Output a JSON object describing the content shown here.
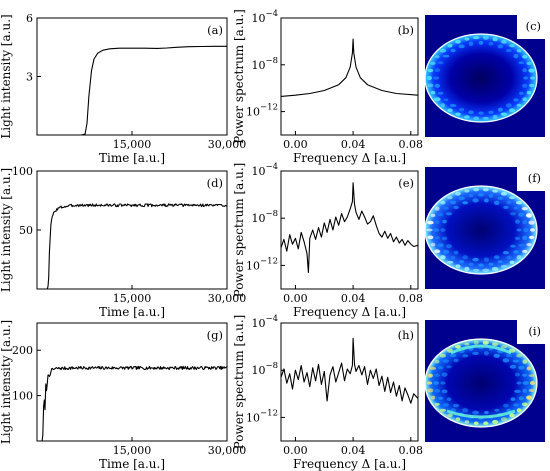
{
  "chart_data": [
    {
      "id": "a",
      "type": "line",
      "panel_label": "(a)",
      "xlabel": "Time [a.u.]",
      "ylabel": "Light intensity [a.u.]",
      "xlim": [
        0,
        30000
      ],
      "ylim": [
        0,
        6
      ],
      "xticks": [
        15000,
        30000
      ],
      "xtick_labels": [
        "15,000",
        "30,000"
      ],
      "yticks": [
        3,
        6
      ],
      "ytick_labels": [
        "3",
        "6"
      ],
      "series": [
        {
          "x": [
            0,
            7000,
            7600,
            7900,
            8200,
            8600,
            9000,
            9600,
            10400,
            11500,
            13000,
            15000,
            17000,
            19000,
            20500,
            22000,
            24000,
            26000,
            28000,
            30000
          ],
          "y": [
            0.0,
            0.0,
            0.05,
            0.6,
            2.0,
            3.3,
            3.9,
            4.2,
            4.35,
            4.42,
            4.45,
            4.45,
            4.45,
            4.44,
            4.46,
            4.5,
            4.53,
            4.54,
            4.55,
            4.55
          ]
        }
      ]
    },
    {
      "id": "b",
      "type": "line",
      "panel_label": "(b)",
      "xlabel": "Frequency Δ [a.u.]",
      "ylabel": "Power spectrum [a.u.]",
      "xlim": [
        -0.01,
        0.085
      ],
      "yscale": "log",
      "ylim_exp": [
        -14,
        -4
      ],
      "xticks": [
        0,
        0.04,
        0.08
      ],
      "xtick_labels": [
        "0.00",
        "0.04",
        "0.08"
      ],
      "ytick_exps": [
        -4,
        -8,
        -12
      ],
      "ytick_base": "10",
      "ytick_exp_labels": [
        "−4",
        "−8",
        "−12"
      ],
      "series": [
        {
          "x": [
            -0.01,
            0.0,
            0.01,
            0.02,
            0.03,
            0.035,
            0.038,
            0.0395,
            0.04,
            0.0405,
            0.042,
            0.045,
            0.05,
            0.06,
            0.07,
            0.085
          ],
          "log10y": [
            -10.7,
            -10.6,
            -10.45,
            -10.2,
            -9.7,
            -9.1,
            -8.2,
            -7.0,
            -5.8,
            -7.0,
            -8.2,
            -9.1,
            -9.7,
            -10.2,
            -10.45,
            -10.6
          ]
        }
      ]
    },
    {
      "id": "d",
      "type": "line",
      "panel_label": "(d)",
      "xlabel": "Time [a.u.]",
      "ylabel": "Light intensity [a.u.]",
      "xlim": [
        0,
        30000
      ],
      "ylim": [
        0,
        100
      ],
      "xticks": [
        15000,
        30000
      ],
      "xtick_labels": [
        "15,000",
        "30,000"
      ],
      "yticks": [
        50,
        100
      ],
      "ytick_labels": [
        "50",
        "100"
      ],
      "noise": 1.2,
      "seed": 3,
      "series": [
        {
          "x": [
            0,
            1700,
            1850,
            2000,
            2200,
            2500,
            3000,
            3600,
            4500,
            6000,
            8000,
            30000
          ],
          "y": [
            0,
            0,
            10,
            38,
            55,
            63,
            67,
            69,
            70,
            71,
            71,
            71
          ]
        }
      ]
    },
    {
      "id": "e",
      "type": "line",
      "panel_label": "(e)",
      "xlabel": "Frequency Δ [a.u.]",
      "ylabel": "Power spectrum [a.u.]",
      "xlim": [
        -0.01,
        0.085
      ],
      "yscale": "log",
      "ylim_exp": [
        -14,
        -4
      ],
      "xticks": [
        0,
        0.04,
        0.08
      ],
      "xtick_labels": [
        "0.00",
        "0.04",
        "0.08"
      ],
      "ytick_exps": [
        -4,
        -8,
        -12
      ],
      "ytick_base": "10",
      "ytick_exp_labels": [
        "−4",
        "−8",
        "−12"
      ],
      "series": [
        {
          "x": [
            -0.01,
            -0.008,
            -0.006,
            -0.004,
            -0.002,
            0.0,
            0.002,
            0.004,
            0.006,
            0.008,
            0.009,
            0.01,
            0.012,
            0.014,
            0.016,
            0.018,
            0.02,
            0.022,
            0.024,
            0.026,
            0.028,
            0.03,
            0.032,
            0.034,
            0.036,
            0.038,
            0.0395,
            0.04,
            0.041,
            0.042,
            0.044,
            0.046,
            0.048,
            0.05,
            0.052,
            0.054,
            0.056,
            0.058,
            0.06,
            0.062,
            0.064,
            0.066,
            0.068,
            0.07,
            0.072,
            0.074,
            0.076,
            0.078,
            0.08,
            0.082,
            0.085
          ],
          "log10y": [
            -10.5,
            -9.8,
            -10.8,
            -9.4,
            -10.2,
            -9.7,
            -10.6,
            -9.2,
            -10.0,
            -11.0,
            -12.6,
            -9.7,
            -9.0,
            -9.8,
            -8.8,
            -9.6,
            -8.4,
            -9.2,
            -8.1,
            -9.0,
            -7.9,
            -8.6,
            -7.6,
            -8.3,
            -7.9,
            -7.2,
            -6.6,
            -5.0,
            -6.8,
            -7.5,
            -8.1,
            -7.4,
            -7.9,
            -8.5,
            -8.3,
            -7.8,
            -8.6,
            -9.3,
            -9.6,
            -9.1,
            -9.7,
            -9.3,
            -10.0,
            -9.6,
            -10.1,
            -9.8,
            -10.3,
            -9.9,
            -10.2,
            -10.4,
            -10.3
          ]
        }
      ]
    },
    {
      "id": "g",
      "type": "line",
      "panel_label": "(g)",
      "xlabel": "Time [a.u.]",
      "ylabel": "Light intensity [a.u.]",
      "xlim": [
        0,
        30000
      ],
      "ylim": [
        0,
        260
      ],
      "xticks": [
        15000,
        30000
      ],
      "xtick_labels": [
        "15,000",
        "30,000"
      ],
      "yticks": [
        100,
        200
      ],
      "ytick_labels": [
        "100",
        "200"
      ],
      "noise": 3.5,
      "seed": 7,
      "series": [
        {
          "x": [
            0,
            900,
            1100,
            1250,
            1400,
            1550,
            1700,
            1900,
            2200,
            2600,
            3200,
            4000,
            6000,
            30000
          ],
          "y": [
            0,
            0,
            110,
            60,
            130,
            100,
            150,
            140,
            155,
            158,
            160,
            160,
            161,
            161
          ]
        }
      ]
    },
    {
      "id": "h",
      "type": "line",
      "panel_label": "(h)",
      "xlabel": "Frequency Δ [a.u.]",
      "ylabel": "Power spectrum [a.u.]",
      "xlim": [
        -0.01,
        0.085
      ],
      "yscale": "log",
      "ylim_exp": [
        -14,
        -4
      ],
      "xticks": [
        0,
        0.04,
        0.08
      ],
      "xtick_labels": [
        "0.00",
        "0.04",
        "0.08"
      ],
      "ytick_exps": [
        -4,
        -8,
        -12
      ],
      "ytick_base": "10",
      "ytick_exp_labels": [
        "−4",
        "−8",
        "−12"
      ],
      "series": [
        {
          "x": [
            -0.01,
            -0.008,
            -0.006,
            -0.004,
            -0.002,
            0.0,
            0.002,
            0.004,
            0.006,
            0.008,
            0.01,
            0.012,
            0.014,
            0.016,
            0.018,
            0.02,
            0.022,
            0.024,
            0.026,
            0.028,
            0.03,
            0.032,
            0.034,
            0.036,
            0.038,
            0.0395,
            0.04,
            0.041,
            0.042,
            0.044,
            0.046,
            0.048,
            0.05,
            0.052,
            0.054,
            0.056,
            0.058,
            0.06,
            0.062,
            0.064,
            0.066,
            0.068,
            0.07,
            0.072,
            0.074,
            0.076,
            0.078,
            0.08,
            0.082,
            0.085
          ],
          "log10y": [
            -8.6,
            -7.9,
            -9.1,
            -8.3,
            -9.6,
            -8.0,
            -8.8,
            -7.6,
            -9.0,
            -8.2,
            -9.4,
            -7.8,
            -8.9,
            -7.5,
            -9.2,
            -8.1,
            -10.6,
            -8.4,
            -7.7,
            -9.0,
            -8.2,
            -7.4,
            -8.9,
            -7.9,
            -8.3,
            -7.6,
            -5.3,
            -7.5,
            -8.1,
            -7.6,
            -8.4,
            -7.7,
            -9.2,
            -8.0,
            -8.7,
            -7.9,
            -9.3,
            -8.5,
            -9.8,
            -8.6,
            -9.9,
            -9.0,
            -10.2,
            -9.3,
            -10.6,
            -9.5,
            -10.1,
            -10.8,
            -10.0,
            -10.4
          ]
        }
      ]
    }
  ],
  "heatmaps": [
    {
      "id": "c",
      "panel_label": "(c)",
      "pattern": "smooth",
      "colormap": "jet"
    },
    {
      "id": "f",
      "panel_label": "(f)",
      "pattern": "whispering-gallery",
      "colormap": "jet"
    },
    {
      "id": "i",
      "panel_label": "(i)",
      "pattern": "bright-arcs",
      "colormap": "jet"
    }
  ]
}
